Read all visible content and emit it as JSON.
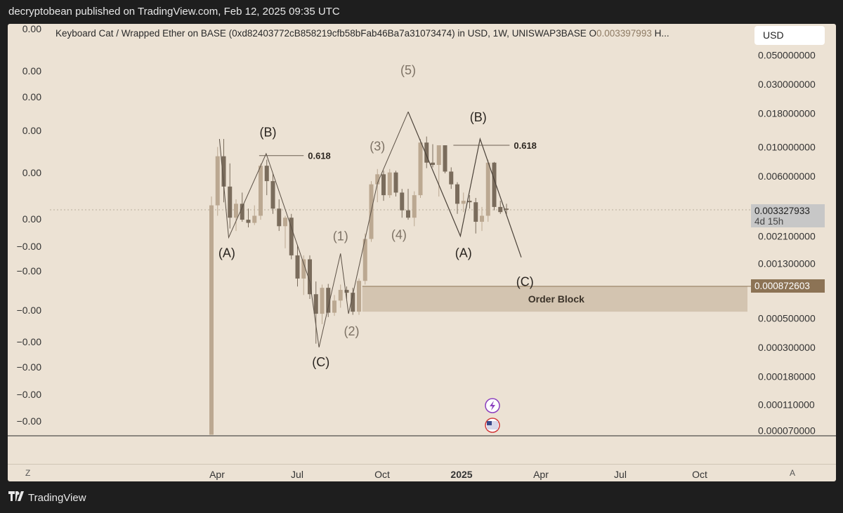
{
  "header": {
    "publisher": "decryptobean published on TradingView.com, Feb 12, 2025 09:35 UTC"
  },
  "chart_title": {
    "symbol": "Keyboard Cat / Wrapped Ether on BASE (0xd82403772cB858219cfb58bFab46Ba7a31073474) in USD, 1W, UNISWAP3BASE",
    "open_label": "O",
    "open_value": "0.003397993",
    "trailing": "H..."
  },
  "currency_button": "USD",
  "price_tags": {
    "last_price": "0.003327933",
    "countdown": "4d 15h",
    "level_price": "0.000872603"
  },
  "colors": {
    "background": "#ece2d4",
    "candle_up": "#bba891",
    "candle_down": "#7a6c5c",
    "order_block": "#d3c4b0",
    "last_price_tag": "#c7c7c7",
    "level_tag": "#8c7355"
  },
  "scale_toggles": {
    "log": "Z",
    "auto": "A"
  },
  "footer": {
    "brand": "TradingView"
  },
  "chart_data": {
    "type": "candlestick",
    "title": "Keyboard Cat / Wrapped Ether on BASE (0xd82403772cB858219cfb58bFab46Ba7a31073474) in USD, 1W, UNISWAP3BASE",
    "y_scale": "log",
    "right_axis_ticks": [
      "0.050000000",
      "0.030000000",
      "0.018000000",
      "0.010000000",
      "0.006000000",
      "0.002100000",
      "0.001300000",
      "0.000500000",
      "0.000300000",
      "0.000180000",
      "0.000110000",
      "0.000070000"
    ],
    "left_axis_ticks": [
      "0.00",
      "0.00",
      "0.00",
      "0.00",
      "0.00",
      "0.00",
      "−0.00",
      "−0.00",
      "−0.00",
      "−0.00",
      "−0.00",
      "−0.00",
      "−0.00"
    ],
    "x_ticks": [
      "Apr",
      "Jul",
      "Oct",
      "2025",
      "Apr",
      "Jul",
      "Oct"
    ],
    "grid": false,
    "candles": [
      {
        "o": 6.5e-05,
        "h": 0.0042,
        "l": 6.5e-05,
        "c": 0.0036
      },
      {
        "o": 0.0036,
        "h": 0.01,
        "l": 0.003,
        "c": 0.0085
      },
      {
        "o": 0.0085,
        "h": 0.0115,
        "l": 0.0038,
        "c": 0.005
      },
      {
        "o": 0.005,
        "h": 0.0075,
        "l": 0.0024,
        "c": 0.0029
      },
      {
        "o": 0.0029,
        "h": 0.004,
        "l": 0.0023,
        "c": 0.0037
      },
      {
        "o": 0.0037,
        "h": 0.0045,
        "l": 0.0027,
        "c": 0.0028
      },
      {
        "o": 0.0028,
        "h": 0.0034,
        "l": 0.00245,
        "c": 0.00265
      },
      {
        "o": 0.00265,
        "h": 0.0036,
        "l": 0.00255,
        "c": 0.003
      },
      {
        "o": 0.003,
        "h": 0.0075,
        "l": 0.0028,
        "c": 0.0072
      },
      {
        "o": 0.0072,
        "h": 0.008,
        "l": 0.0043,
        "c": 0.0055
      },
      {
        "o": 0.0055,
        "h": 0.0063,
        "l": 0.0031,
        "c": 0.0034
      },
      {
        "o": 0.0034,
        "h": 0.004,
        "l": 0.0023,
        "c": 0.0025
      },
      {
        "o": 0.0025,
        "h": 0.003,
        "l": 0.0017,
        "c": 0.0029
      },
      {
        "o": 0.0029,
        "h": 0.0031,
        "l": 0.0014,
        "c": 0.0015
      },
      {
        "o": 0.0015,
        "h": 0.0018,
        "l": 0.00087,
        "c": 0.001
      },
      {
        "o": 0.001,
        "h": 0.0015,
        "l": 0.00075,
        "c": 0.0014
      },
      {
        "o": 0.0014,
        "h": 0.0015,
        "l": 0.0007,
        "c": 0.00076
      },
      {
        "o": 0.00076,
        "h": 0.00095,
        "l": 0.00032,
        "c": 0.00054
      },
      {
        "o": 0.00054,
        "h": 0.0009,
        "l": 0.00045,
        "c": 0.00085
      },
      {
        "o": 0.00085,
        "h": 0.00091,
        "l": 0.00051,
        "c": 0.00055
      },
      {
        "o": 0.00055,
        "h": 0.00075,
        "l": 0.00052,
        "c": 0.00068
      },
      {
        "o": 0.00068,
        "h": 0.0009,
        "l": 0.0006,
        "c": 0.00082
      },
      {
        "o": 0.00082,
        "h": 0.00087,
        "l": 0.0007,
        "c": 0.00078
      },
      {
        "o": 0.00078,
        "h": 0.00085,
        "l": 0.00053,
        "c": 0.00056
      },
      {
        "o": 0.00056,
        "h": 0.001,
        "l": 0.00053,
        "c": 0.00096
      },
      {
        "o": 0.00096,
        "h": 0.0022,
        "l": 0.0009,
        "c": 0.002
      },
      {
        "o": 0.002,
        "h": 0.0055,
        "l": 0.0019,
        "c": 0.0052
      },
      {
        "o": 0.0052,
        "h": 0.0068,
        "l": 0.0038,
        "c": 0.0062
      },
      {
        "o": 0.0062,
        "h": 0.0066,
        "l": 0.0039,
        "c": 0.0043
      },
      {
        "o": 0.0043,
        "h": 0.0068,
        "l": 0.0041,
        "c": 0.0064
      },
      {
        "o": 0.0064,
        "h": 0.0066,
        "l": 0.0042,
        "c": 0.0045
      },
      {
        "o": 0.0045,
        "h": 0.0048,
        "l": 0.0029,
        "c": 0.0033
      },
      {
        "o": 0.0033,
        "h": 0.0048,
        "l": 0.0028,
        "c": 0.0029
      },
      {
        "o": 0.0029,
        "h": 0.0046,
        "l": 0.0025,
        "c": 0.0043
      },
      {
        "o": 0.0043,
        "h": 0.0115,
        "l": 0.0041,
        "c": 0.0108
      },
      {
        "o": 0.0108,
        "h": 0.012,
        "l": 0.0069,
        "c": 0.0076
      },
      {
        "o": 0.0076,
        "h": 0.0105,
        "l": 0.007,
        "c": 0.0073
      },
      {
        "o": 0.0073,
        "h": 0.0103,
        "l": 0.0042,
        "c": 0.0103
      },
      {
        "o": 0.0103,
        "h": 0.0103,
        "l": 0.0063,
        "c": 0.0065
      },
      {
        "o": 0.0065,
        "h": 0.007,
        "l": 0.0048,
        "c": 0.0052
      },
      {
        "o": 0.0052,
        "h": 0.0054,
        "l": 0.0031,
        "c": 0.0037
      },
      {
        "o": 0.0037,
        "h": 0.0045,
        "l": 0.0032,
        "c": 0.0039
      },
      {
        "o": 0.0039,
        "h": 0.0043,
        "l": 0.0034,
        "c": 0.0038
      },
      {
        "o": 0.0038,
        "h": 0.0041,
        "l": 0.0022,
        "c": 0.0027
      },
      {
        "o": 0.0027,
        "h": 0.0035,
        "l": 0.0023,
        "c": 0.003
      },
      {
        "o": 0.003,
        "h": 0.008,
        "l": 0.0027,
        "c": 0.0076
      },
      {
        "o": 0.0076,
        "h": 0.0077,
        "l": 0.0033,
        "c": 0.0035
      },
      {
        "o": 0.0035,
        "h": 0.0039,
        "l": 0.0031,
        "c": 0.0032
      },
      {
        "o": 0.0034,
        "h": 0.0037,
        "l": 0.0031,
        "c": 0.00333
      }
    ],
    "order_block": {
      "label": "Order Block",
      "top": 0.000872603,
      "bottom": 0.00056
    },
    "fib_levels": [
      {
        "label": "0.618",
        "value": 0.0086
      },
      {
        "label": "0.618",
        "value": 0.0103
      }
    ],
    "wave_labels": [
      {
        "text": "(A)",
        "style": "dark",
        "date_index": 2.5,
        "price": 0.00145
      },
      {
        "text": "(B)",
        "style": "dark",
        "date_index": 9.2,
        "price": 0.012
      },
      {
        "text": "(C)",
        "style": "dark",
        "date_index": 17.8,
        "price": 0.000215
      },
      {
        "text": "(1)",
        "style": "light",
        "date_index": 21.0,
        "price": 0.00195
      },
      {
        "text": "(2)",
        "style": "light",
        "date_index": 22.8,
        "price": 0.00037
      },
      {
        "text": "(3)",
        "style": "light",
        "date_index": 27.0,
        "price": 0.0094
      },
      {
        "text": "(4)",
        "style": "light",
        "date_index": 30.5,
        "price": 0.002
      },
      {
        "text": "(5)",
        "style": "light",
        "date_index": 32.0,
        "price": 0.0355
      },
      {
        "text": "(A)",
        "style": "dark",
        "date_index": 41.0,
        "price": 0.00145
      },
      {
        "text": "(B)",
        "style": "dark",
        "date_index": 43.4,
        "price": 0.0156
      },
      {
        "text": "(C)",
        "style": "dark",
        "date_index": 51.0,
        "price": 0.00088
      }
    ],
    "wave_path_left": [
      {
        "i": 1.3,
        "p": 0.0115
      },
      {
        "i": 2.8,
        "p": 0.00205
      },
      {
        "i": 8.9,
        "p": 0.0089
      },
      {
        "i": 16.0,
        "p": 0.00095
      },
      {
        "i": 17.5,
        "p": 0.0003
      },
      {
        "i": 21.0,
        "p": 0.00155
      },
      {
        "i": 22.3,
        "p": 0.00054
      },
      {
        "i": 27.0,
        "p": 0.0053
      },
      {
        "i": 32.0,
        "p": 0.0185
      }
    ],
    "wave_path_right": [
      {
        "i": 32.0,
        "p": 0.0185
      },
      {
        "i": 40.5,
        "p": 0.0021
      },
      {
        "i": 43.7,
        "p": 0.0115
      },
      {
        "i": 50.4,
        "p": 0.00145
      }
    ],
    "last_price_line": 0.003327933
  }
}
